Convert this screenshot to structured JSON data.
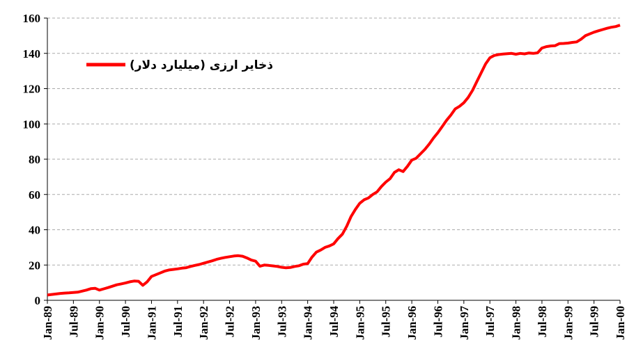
{
  "chart_data": {
    "type": "line",
    "categories": [
      "Jan-89",
      null,
      null,
      null,
      null,
      null,
      "Jul-89",
      null,
      null,
      null,
      null,
      null,
      "Jan-90",
      null,
      null,
      null,
      null,
      null,
      "Jul-90",
      null,
      null,
      null,
      null,
      null,
      "Jan-91",
      null,
      null,
      null,
      null,
      null,
      "Jul-91",
      null,
      null,
      null,
      null,
      null,
      "Jan-92",
      null,
      null,
      null,
      null,
      null,
      "Jul-92",
      null,
      null,
      null,
      null,
      null,
      "Jan-93",
      null,
      null,
      null,
      null,
      null,
      "Jul-93",
      null,
      null,
      null,
      null,
      null,
      "Jan-94",
      null,
      null,
      null,
      null,
      null,
      "Jul-94",
      null,
      null,
      null,
      null,
      null,
      "Jan-95",
      null,
      null,
      null,
      null,
      null,
      "Jul-95",
      null,
      null,
      null,
      null,
      null,
      "Jan-96",
      null,
      null,
      null,
      null,
      null,
      "Jul-96",
      null,
      null,
      null,
      null,
      null,
      "Jan-97",
      null,
      null,
      null,
      null,
      null,
      "Jul-97",
      null,
      null,
      null,
      null,
      null,
      "Jan-98",
      null,
      null,
      null,
      null,
      null,
      "Jul-98",
      null,
      null,
      null,
      null,
      null,
      "Jan-99",
      null,
      null,
      null,
      null,
      null,
      "Jul-99",
      null,
      null,
      null,
      null,
      null,
      "Jan-00"
    ],
    "series": [
      {
        "name": "ذخایر ارزی (میلیارد دلار)",
        "color": "#ff0000",
        "values": [
          3.0,
          3.3,
          3.6,
          3.9,
          4.1,
          4.2,
          4.4,
          4.6,
          5.2,
          5.8,
          6.6,
          6.8,
          5.8,
          6.5,
          7.2,
          8.0,
          8.8,
          9.3,
          9.8,
          10.5,
          10.9,
          10.8,
          8.5,
          10.5,
          13.5,
          14.5,
          15.5,
          16.5,
          17.2,
          17.5,
          17.8,
          18.2,
          18.5,
          19.2,
          19.8,
          20.3,
          21.0,
          21.7,
          22.4,
          23.2,
          23.8,
          24.3,
          24.7,
          25.1,
          25.3,
          25.0,
          24.0,
          22.8,
          22.2,
          19.3,
          20.0,
          19.8,
          19.5,
          19.2,
          18.7,
          18.4,
          18.6,
          19.2,
          19.6,
          20.5,
          20.8,
          24.5,
          27.3,
          28.5,
          30.0,
          30.8,
          32.0,
          35.0,
          37.5,
          42.0,
          47.5,
          51.5,
          55.0,
          57.0,
          58.0,
          60.0,
          61.5,
          64.5,
          67.0,
          69.0,
          72.5,
          74.0,
          73.0,
          76.0,
          79.5,
          80.5,
          83.0,
          85.5,
          88.5,
          92.0,
          95.0,
          98.5,
          102.0,
          105.0,
          108.5,
          110.0,
          112.0,
          115.0,
          119.0,
          124.0,
          129.0,
          134.0,
          137.5,
          138.8,
          139.3,
          139.6,
          139.8,
          140.0,
          139.5,
          140.0,
          139.7,
          140.2,
          140.0,
          140.3,
          143.0,
          143.8,
          144.2,
          144.3,
          145.5,
          145.6,
          145.8,
          146.2,
          146.5,
          148.0,
          150.0,
          151.0,
          152.0,
          152.8,
          153.5,
          154.2,
          154.8,
          155.2,
          156.0
        ]
      }
    ],
    "ylim": [
      0,
      160
    ],
    "yticks": [
      0,
      20,
      40,
      60,
      80,
      100,
      120,
      140,
      160
    ],
    "grid": true,
    "legend": "upper left"
  }
}
